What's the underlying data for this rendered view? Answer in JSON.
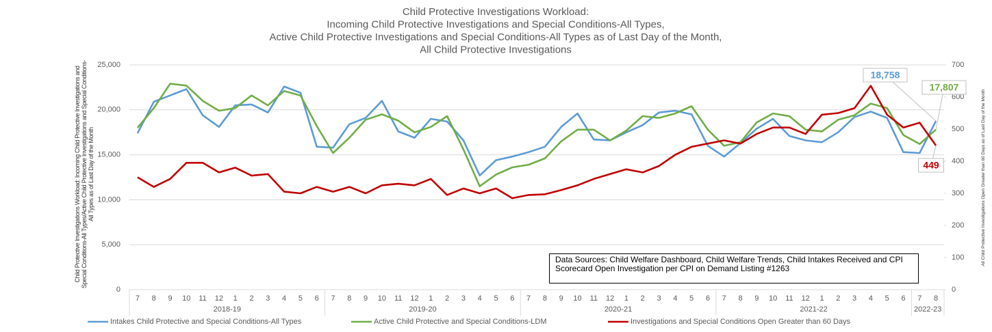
{
  "chart_data": {
    "type": "line",
    "title": [
      "Child Protective Investigations Workload:",
      "Incoming Child Protective Investigations and Special Conditions-All Types,",
      "Active Child Protective Investigations and Special Conditions-All Types as of Last Day of the Month,",
      "All Child Protective Investigations"
    ],
    "y_label": "Child Protective Investigations Workload: Incoming Child Protective Investigations and Special Conditions-All Types/Active Child Protective Investigations and Special Conditions-All Types as of Last Day of the Month",
    "y2_label": "All Child Protective Investigations Open Greater than 60 Days as of Last Day of the Month",
    "annotation": "Data Sources: Child Welfare Dashboard, Child Welfare Trends, Child Intakes Received and CPI Scorecard Open Investigation per CPI on Demand Listing #1263",
    "category_groups": [
      {
        "label": "2018-19",
        "categories": [
          "7",
          "8",
          "9",
          "10",
          "11",
          "12",
          "1",
          "2",
          "3",
          "4",
          "5",
          "6"
        ]
      },
      {
        "label": "2019-20",
        "categories": [
          "7",
          "8",
          "9",
          "10",
          "11",
          "12",
          "1",
          "2",
          "3",
          "4",
          "5",
          "6"
        ]
      },
      {
        "label": "2020-21",
        "categories": [
          "7",
          "8",
          "9",
          "10",
          "11",
          "12",
          "1",
          "2",
          "3",
          "4",
          "5",
          "6"
        ]
      },
      {
        "label": "2021-22",
        "categories": [
          "7",
          "8",
          "9",
          "10",
          "11",
          "12",
          "1",
          "2",
          "3",
          "4",
          "5",
          "6"
        ]
      },
      {
        "label": "2022-23",
        "categories": [
          "7",
          "8"
        ]
      }
    ],
    "ylim": [
      0,
      25000
    ],
    "yticks": [
      0,
      {
        "value": 5000,
        "label": "5,000"
      },
      {
        "value": 10000,
        "label": "10,000"
      },
      {
        "value": 15000,
        "label": "15,000"
      },
      {
        "value": 20000,
        "label": "20,000"
      },
      {
        "value": 25000,
        "label": "25,000"
      }
    ],
    "y2lim": [
      0,
      700
    ],
    "y2ticks": [
      0,
      100,
      200,
      300,
      400,
      500,
      600,
      700
    ],
    "grid": true,
    "legend": "bottom",
    "series": [
      {
        "name": "Intakes Child Protective and Special Conditions-All Types",
        "color": "#5b9bd5",
        "values": [
          17400,
          20900,
          21600,
          22300,
          19400,
          18100,
          20500,
          20600,
          19700,
          22600,
          21900,
          15900,
          15800,
          18400,
          19100,
          21000,
          17600,
          16900,
          19000,
          18700,
          16600,
          12700,
          14400,
          14800,
          15300,
          15900,
          18100,
          19600,
          16700,
          16600,
          17500,
          18300,
          19700,
          19900,
          19500,
          16000,
          14800,
          16300,
          17900,
          19000,
          17100,
          16600,
          16400,
          17500,
          19200,
          19800,
          19100,
          15300,
          15200,
          18758
        ],
        "value_labels": [
          null,
          null,
          null,
          null,
          null,
          null,
          null,
          null,
          null,
          null,
          null,
          null,
          null,
          null,
          null,
          null,
          null,
          null,
          null,
          null,
          null,
          null,
          null,
          null,
          null,
          null,
          null,
          null,
          null,
          null,
          null,
          null,
          null,
          null,
          null,
          null,
          null,
          null,
          null,
          null,
          null,
          null,
          null,
          null,
          null,
          null,
          null,
          null,
          null,
          "18,758"
        ]
      },
      {
        "name": "Active Child Protective and Special Conditions-LDM",
        "color": "#70ad47",
        "values": [
          18000,
          20200,
          22900,
          22700,
          21000,
          19900,
          20200,
          21600,
          20500,
          22100,
          21600,
          18200,
          15200,
          16900,
          18900,
          19500,
          18800,
          17500,
          18100,
          19300,
          15600,
          11500,
          12800,
          13600,
          13900,
          14600,
          16500,
          17800,
          17800,
          16600,
          17700,
          19300,
          19100,
          19600,
          20400,
          17800,
          16000,
          16400,
          18600,
          19600,
          19300,
          17800,
          17600,
          18900,
          19400,
          20700,
          20200,
          17200,
          16200,
          17807
        ],
        "value_labels": [
          null,
          null,
          null,
          null,
          null,
          null,
          null,
          null,
          null,
          null,
          null,
          null,
          null,
          null,
          null,
          null,
          null,
          null,
          null,
          null,
          null,
          null,
          null,
          null,
          null,
          null,
          null,
          null,
          null,
          null,
          null,
          null,
          null,
          null,
          null,
          null,
          null,
          null,
          null,
          null,
          null,
          null,
          null,
          null,
          null,
          null,
          null,
          null,
          null,
          "17,807"
        ]
      },
      {
        "name": "Investigations and Special Conditions Open Greater than 60 Days",
        "color": "#c00000",
        "axis": "y2",
        "values": [
          350,
          320,
          345,
          395,
          395,
          365,
          380,
          355,
          360,
          305,
          300,
          320,
          305,
          320,
          300,
          325,
          330,
          325,
          345,
          295,
          315,
          300,
          315,
          285,
          295,
          297,
          310,
          325,
          345,
          360,
          375,
          365,
          385,
          420,
          445,
          455,
          465,
          455,
          485,
          505,
          505,
          485,
          545,
          550,
          565,
          635,
          545,
          505,
          520,
          449
        ],
        "value_labels": [
          null,
          null,
          null,
          null,
          null,
          null,
          null,
          null,
          null,
          null,
          null,
          null,
          null,
          null,
          null,
          null,
          null,
          null,
          null,
          null,
          null,
          null,
          null,
          null,
          null,
          null,
          null,
          null,
          null,
          null,
          null,
          null,
          null,
          null,
          null,
          null,
          null,
          null,
          null,
          null,
          null,
          null,
          null,
          null,
          null,
          null,
          null,
          null,
          null,
          "449"
        ]
      }
    ]
  }
}
